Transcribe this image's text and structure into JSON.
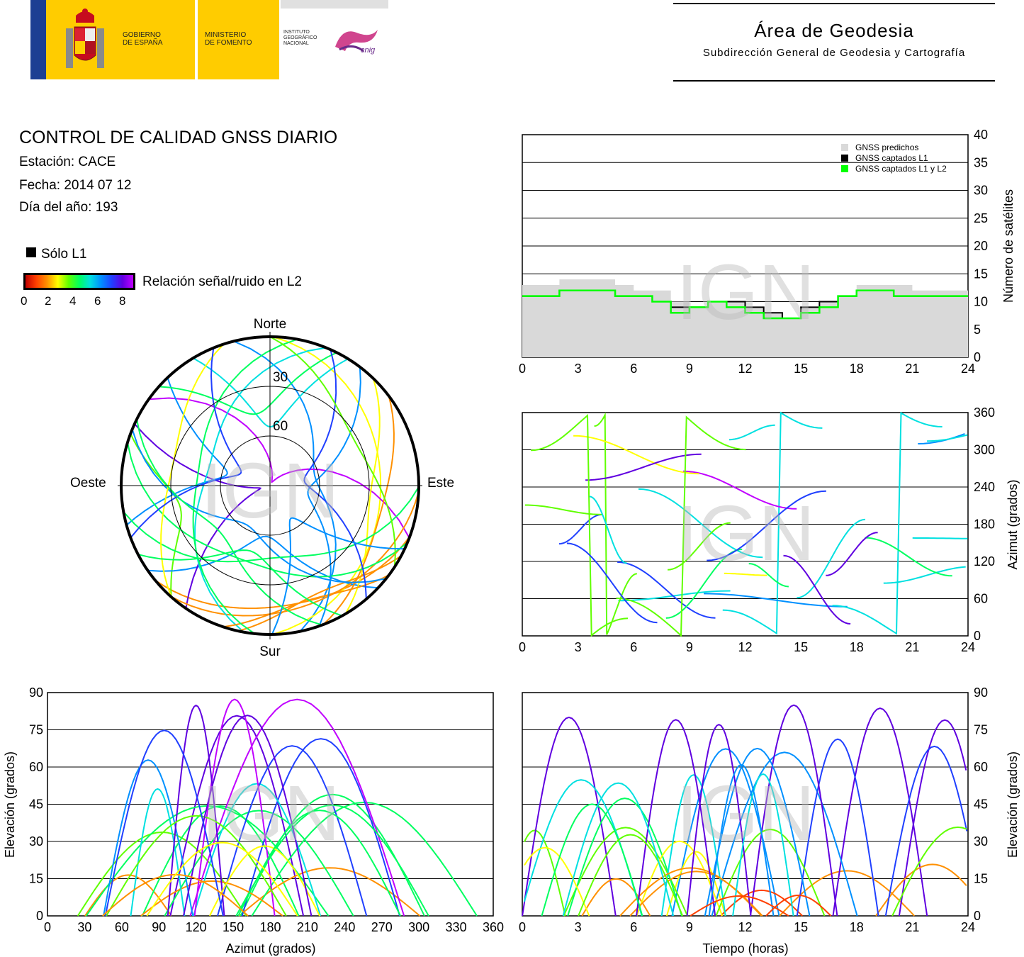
{
  "header": {
    "gobierno": "GOBIERNO\nDE ESPAÑA",
    "ministerio": "MINISTERIO\nDE FOMENTO",
    "instituto": "INSTITUTO\nGEOGRÁFICO\nNACIONAL",
    "cnig": "cnig",
    "area_title": "Área de Geodesia",
    "area_subtitle": "Subdirección General de Geodesia y Cartografía"
  },
  "info": {
    "title": "CONTROL DE CALIDAD GNSS DIARIO",
    "station": "Estación: CACE",
    "date": "Fecha: 2014 07 12",
    "doy": "Día del año: 193"
  },
  "legend": {
    "only_l1": "Sólo L1",
    "snr_l2": "Relación señal/ruido en L2",
    "colorbar_ticks": [
      "0",
      "2",
      "4",
      "6",
      "8"
    ]
  },
  "watermark": "IGN",
  "colors": {
    "predicted": "#d9d9d9",
    "l1": "#000000",
    "l1l2": "#00ff00",
    "snr_scale": [
      "#c00000",
      "#ff4000",
      "#ff9000",
      "#ffff00",
      "#60ff00",
      "#00ff60",
      "#00e0e0",
      "#0090ff",
      "#2040ff",
      "#6000e0",
      "#c000ff"
    ]
  },
  "chart_data": [
    {
      "id": "skyplot",
      "type": "scatter",
      "title": "",
      "labels": {
        "north": "Norte",
        "south": "Sur",
        "east": "Este",
        "west": "Oeste"
      },
      "rings": [
        "30",
        "60"
      ],
      "elevation_rings_deg": [
        0,
        30,
        60
      ],
      "note_series": "satellite tracks coloured by L2 SNR"
    },
    {
      "id": "satellites",
      "type": "area",
      "ylabel": "Número de satélites",
      "xlim": [
        0,
        24
      ],
      "ylim": [
        0,
        40
      ],
      "xticks": [
        "0",
        "3",
        "6",
        "9",
        "12",
        "15",
        "18",
        "21",
        "24"
      ],
      "yticks": [
        "0",
        "5",
        "10",
        "15",
        "20",
        "25",
        "30",
        "35",
        "40"
      ],
      "legend": [
        "GNSS predichos",
        "GNSS captados L1",
        "GNSS captados L1 y L2"
      ],
      "legend_position": "top-right",
      "grid": true,
      "x": [
        0,
        1,
        2,
        3,
        4,
        5,
        6,
        7,
        8,
        9,
        10,
        11,
        12,
        13,
        14,
        15,
        16,
        17,
        18,
        19,
        20,
        21,
        22,
        23,
        24
      ],
      "series": [
        {
          "name": "GNSS predichos",
          "values": [
            13,
            13,
            14,
            14,
            14,
            13,
            12,
            12,
            10,
            9,
            10,
            10,
            9,
            8,
            7,
            9,
            10,
            11,
            13,
            13,
            13,
            12,
            12,
            12,
            12
          ]
        },
        {
          "name": "GNSS captados L1",
          "values": [
            11,
            11,
            12,
            12,
            12,
            11,
            11,
            10,
            9,
            9,
            10,
            10,
            9,
            8,
            7,
            9,
            10,
            11,
            12,
            12,
            11,
            11,
            11,
            11,
            11
          ]
        },
        {
          "name": "GNSS captados L1 y L2",
          "values": [
            11,
            11,
            12,
            12,
            12,
            11,
            11,
            10,
            8,
            9,
            10,
            9,
            8,
            7,
            7,
            8,
            9,
            11,
            12,
            12,
            11,
            11,
            11,
            11,
            11
          ]
        }
      ]
    },
    {
      "id": "azimuth_time",
      "type": "scatter",
      "ylabel": "Azimut (grados)",
      "xlim": [
        0,
        24
      ],
      "ylim": [
        0,
        360
      ],
      "xticks": [
        "0",
        "3",
        "6",
        "9",
        "12",
        "15",
        "18",
        "21",
        "24"
      ],
      "yticks": [
        "0",
        "60",
        "120",
        "180",
        "240",
        "300",
        "360"
      ],
      "grid": true
    },
    {
      "id": "elevation_azimuth",
      "type": "scatter",
      "xlabel": "Azimut (grados)",
      "ylabel": "Elevación (grados)",
      "xlim": [
        0,
        360
      ],
      "ylim": [
        0,
        90
      ],
      "xticks": [
        "0",
        "30",
        "60",
        "90",
        "120",
        "150",
        "180",
        "210",
        "240",
        "270",
        "300",
        "330",
        "360"
      ],
      "yticks": [
        "0",
        "15",
        "30",
        "45",
        "60",
        "75",
        "90"
      ],
      "grid": true
    },
    {
      "id": "elevation_time",
      "type": "scatter",
      "xlabel": "Tiempo (horas)",
      "ylabel": "Elevación (grados)",
      "xlim": [
        0,
        24
      ],
      "ylim": [
        0,
        90
      ],
      "xticks": [
        "0",
        "3",
        "6",
        "9",
        "12",
        "15",
        "18",
        "21",
        "24"
      ],
      "yticks": [
        "0",
        "15",
        "30",
        "45",
        "60",
        "75",
        "90"
      ],
      "grid": true
    }
  ]
}
